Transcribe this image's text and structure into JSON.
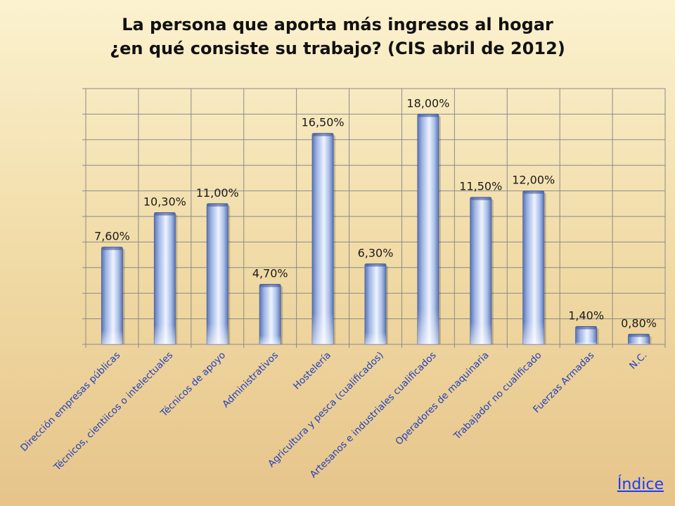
{
  "chart_data": {
    "type": "bar",
    "title_line1": "La persona que aporta más ingresos al hogar",
    "title_line2": "¿en qué consiste su trabajo? (CIS abril de 2012)",
    "categories": [
      "Dirección empresas públicas",
      "Técnicos, cientiicos o intelectuales",
      "Técnicos de apoyo",
      "Administrativos",
      "Hostelería",
      "Agricultura y pesca (cualificados)",
      "Artesanos e industriales cualificados",
      "Operadores de maquinaria",
      "Trabajador no cualificado",
      "Fuerzas Armadas",
      "N.C."
    ],
    "values": [
      7.6,
      10.3,
      11.0,
      4.7,
      16.5,
      6.3,
      18.0,
      11.5,
      12.0,
      1.4,
      0.8
    ],
    "value_labels": [
      "7,60%",
      "10,30%",
      "11,00%",
      "4,70%",
      "16,50%",
      "6,30%",
      "18,00%",
      "11,50%",
      "12,00%",
      "1,40%",
      "0,80%"
    ],
    "ylim": [
      0,
      20
    ],
    "grid": true,
    "colors": {
      "bar_light": "#eef3ff",
      "bar_mid": "#a9bee8",
      "bar_dark": "#6b86c4",
      "grid": "#8a8a8a"
    }
  },
  "footer": {
    "link_label": "Índice"
  }
}
